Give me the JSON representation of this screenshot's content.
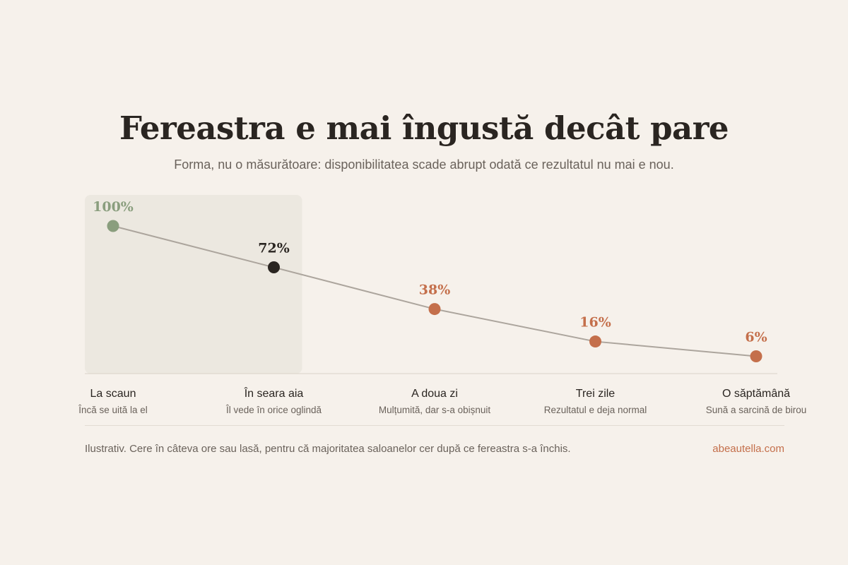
{
  "header": {
    "title": "Fereastra e mai îngustă decât pare",
    "subtitle": "Forma, nu o măsurătoare: disponibilitatea scade abrupt odată ce rezultatul nu mai e nou."
  },
  "footer": {
    "note": "Ilustrativ. Cere în câteva ore sau lasă, pentru că majoritatea saloanelor cer după ce fereastra s-a închis.",
    "source": "abeautella.com"
  },
  "colors": {
    "background": "#f6f1eb",
    "highlight_band": "#ece8e0",
    "line": "#aca59d",
    "first_point": "#8a9e7e",
    "current_point": "#2a2521",
    "later_points": "#c46f4b"
  },
  "chart_data": {
    "type": "line",
    "categories": [
      "La scaun",
      "În seara aia",
      "A doua zi",
      "Trei zile",
      "O săptămână"
    ],
    "category_notes": [
      "Încă se uită la el",
      "Îl vede în orice oglindă",
      "Mulțumită, dar s-a obișnuit",
      "Rezultatul e deja normal",
      "Sună a sarcină de birou"
    ],
    "values": [
      100,
      72,
      38,
      16,
      6
    ],
    "value_labels": [
      "100%",
      "72%",
      "38%",
      "16%",
      "6%"
    ],
    "ylim": [
      0,
      100
    ],
    "highlight_range": [
      "La scaun",
      "În seara aia"
    ],
    "grid": false,
    "legend": "none"
  }
}
